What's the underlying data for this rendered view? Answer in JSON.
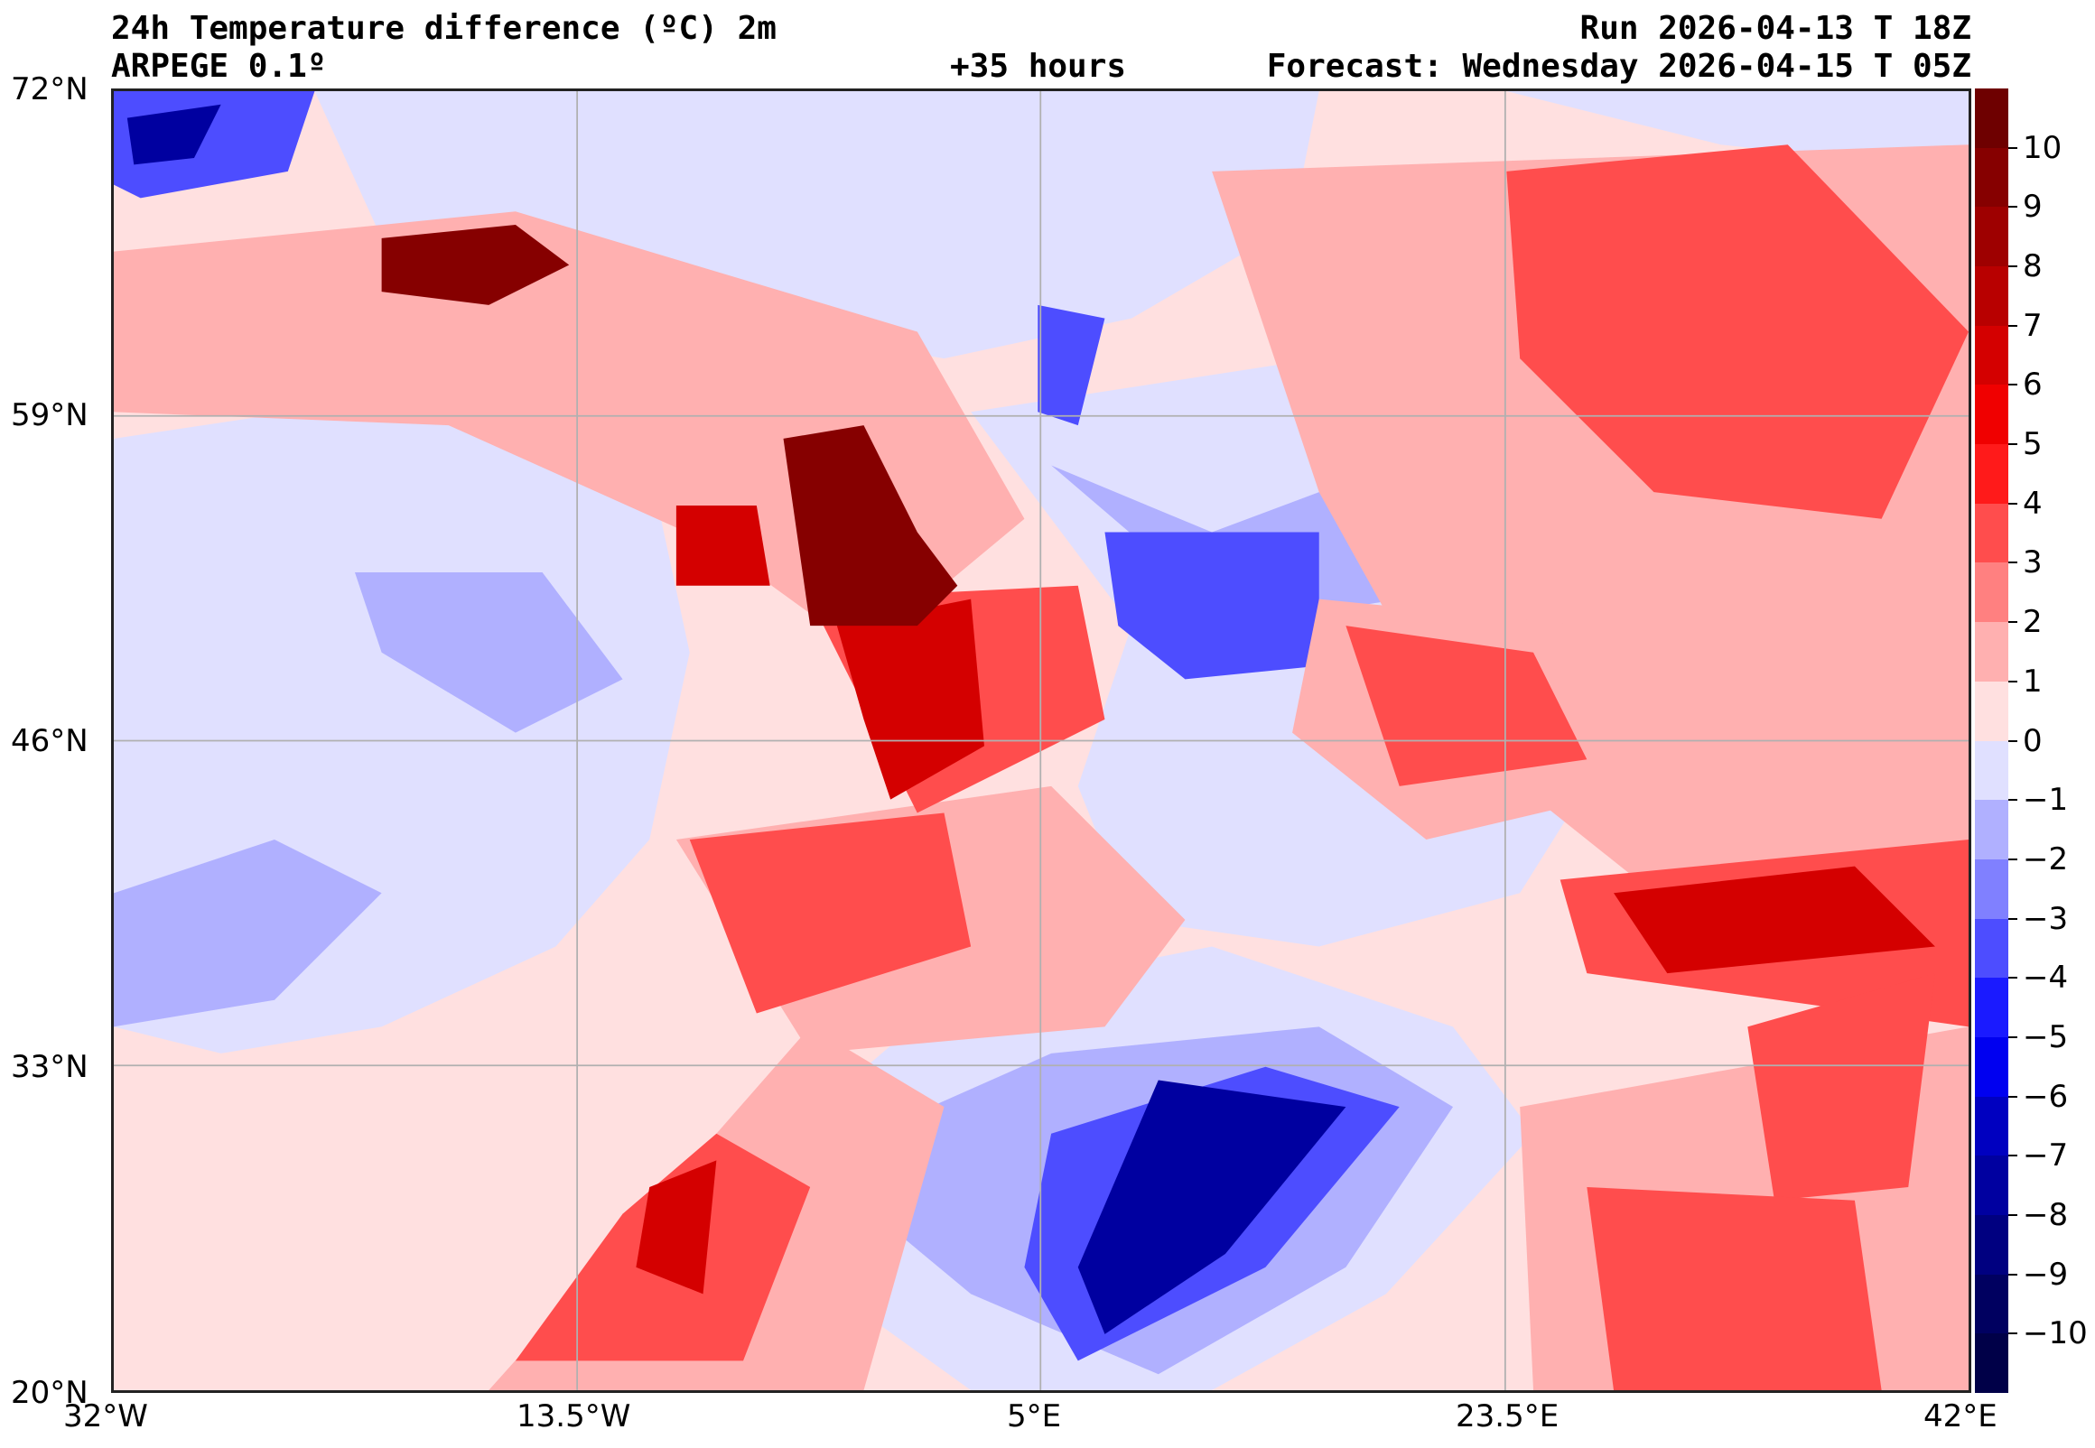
{
  "header": {
    "title": "24h Temperature difference (ºC) 2m",
    "model": "ARPEGE 0.1º",
    "lead_time": "+35 hours",
    "run": "Run 2026-04-13 T 18Z",
    "forecast": "Forecast: Wednesday 2026-04-15 T 05Z"
  },
  "axes": {
    "lat_labels": [
      "72°N",
      "59°N",
      "46°N",
      "33°N",
      "20°N"
    ],
    "lon_labels": [
      "32°W",
      "13.5°W",
      "5°E",
      "23.5°E",
      "42°E"
    ]
  },
  "chart_data": {
    "type": "heatmap",
    "title": "24h Temperature difference (ºC) 2m",
    "lat_range": [
      20,
      72
    ],
    "lon_range": [
      -32,
      42
    ],
    "grid": true,
    "colorbar": {
      "placement": "right",
      "range": [
        -11,
        11
      ],
      "tick_labels": [
        "10",
        "9",
        "8",
        "7",
        "6",
        "5",
        "4",
        "3",
        "2",
        "1",
        "0",
        "−1",
        "−2",
        "−3",
        "−4",
        "−5",
        "−6",
        "−7",
        "−8",
        "−9",
        "−10"
      ],
      "tick_values": [
        10,
        9,
        8,
        7,
        6,
        5,
        4,
        3,
        2,
        1,
        0,
        -1,
        -2,
        -3,
        -4,
        -5,
        -6,
        -7,
        -8,
        -9,
        -10
      ],
      "colors": [
        "#6e0000",
        "#860000",
        "#9e0000",
        "#b80000",
        "#d40000",
        "#f00000",
        "#ff1a1a",
        "#ff4d4d",
        "#ff8080",
        "#ffb0b0",
        "#ffe0e0",
        "#e0e0ff",
        "#b0b0ff",
        "#8080ff",
        "#4d4dff",
        "#1a1aff",
        "#0000f0",
        "#0000c0",
        "#0000a0",
        "#000080",
        "#000060",
        "#000048"
      ]
    }
  }
}
